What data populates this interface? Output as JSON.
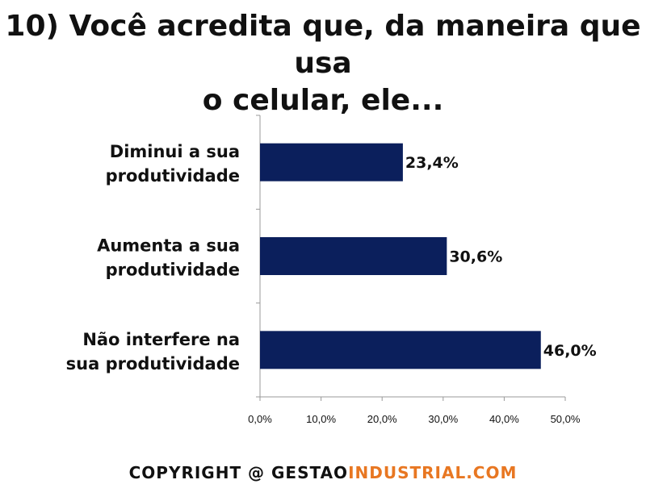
{
  "header": {
    "title_line1": "10) Você acredita que, da maneira que usa",
    "title_line2": "o celular, ele..."
  },
  "footer": {
    "prefix": "COPYRIGHT @ GESTAO",
    "suffix": "INDUSTRIAL.COM",
    "colors": {
      "prefix": "#111111",
      "suffix": "#e87722"
    }
  },
  "chart_data": {
    "type": "bar",
    "orientation": "horizontal",
    "categories": [
      [
        "Diminui a sua",
        "produtividade"
      ],
      [
        "Aumenta a sua",
        "produtividade"
      ],
      [
        "Não interfere na",
        "sua produtividade"
      ]
    ],
    "values": [
      23.4,
      30.6,
      46.0
    ],
    "value_labels": [
      "23,4%",
      "30,6%",
      "46,0%"
    ],
    "xlim": [
      0,
      50
    ],
    "xticks": [
      0,
      10,
      20,
      30,
      40,
      50
    ],
    "xtick_labels": [
      "0,0%",
      "10,0%",
      "20,0%",
      "30,0%",
      "40,0%",
      "50,0%"
    ],
    "bar_color": "#0b1f5c",
    "grid": false
  }
}
